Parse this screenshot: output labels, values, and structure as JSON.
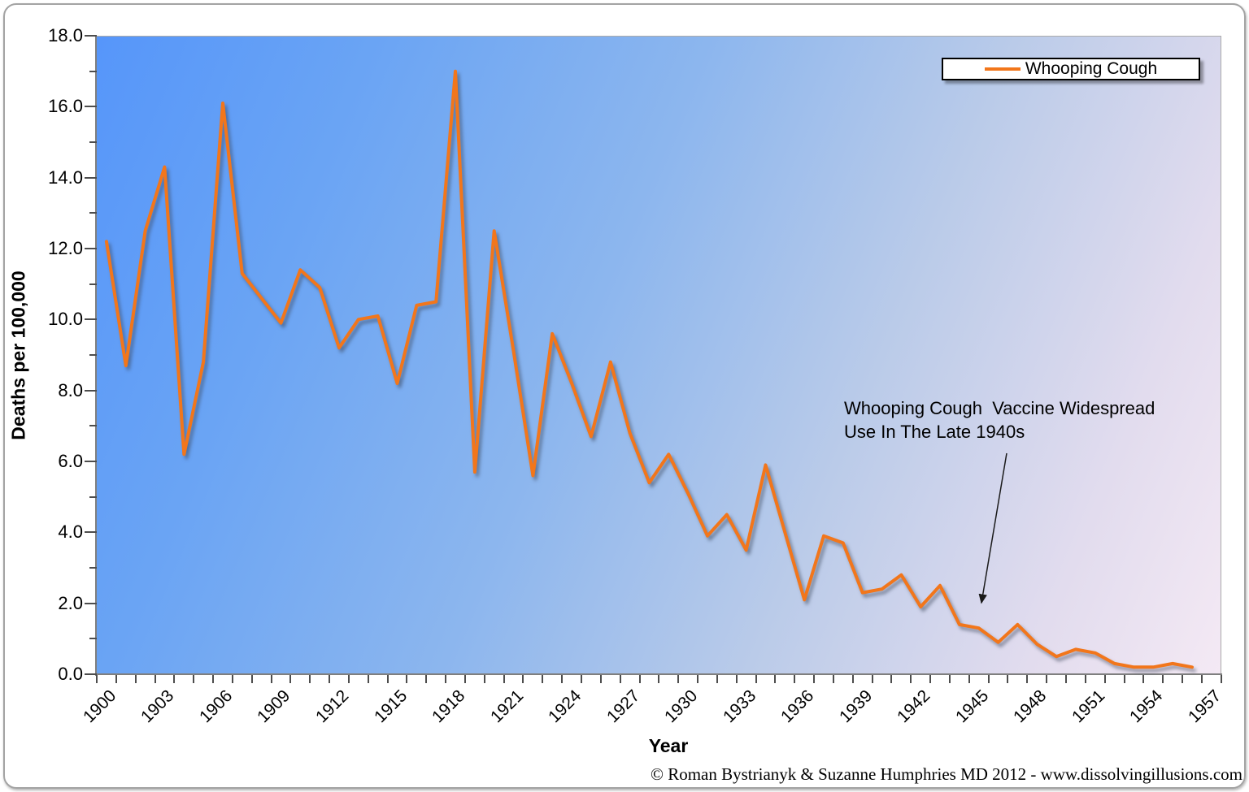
{
  "chart_data": {
    "type": "line",
    "title": "",
    "xlabel": "Year",
    "ylabel": "Deaths per 100,000",
    "ylim": [
      0.0,
      18.0
    ],
    "y_tick_step": 2.0,
    "y_tick_labels": [
      "0.0",
      "2.0",
      "4.0",
      "6.0",
      "8.0",
      "10.0",
      "12.0",
      "14.0",
      "16.0",
      "18.0"
    ],
    "x_axis_first_category": 1900,
    "x_axis_last_category": 1957,
    "x_tick_label_years": [
      1900,
      1903,
      1906,
      1909,
      1912,
      1915,
      1918,
      1921,
      1924,
      1927,
      1930,
      1933,
      1936,
      1939,
      1942,
      1945,
      1948,
      1951,
      1954,
      1957
    ],
    "grid": false,
    "legend_position": "top-right",
    "series": [
      {
        "name": "Whooping Cough",
        "color": "#F2761B",
        "x": [
          1900,
          1901,
          1902,
          1903,
          1904,
          1905,
          1906,
          1907,
          1908,
          1909,
          1910,
          1911,
          1912,
          1913,
          1914,
          1915,
          1916,
          1917,
          1918,
          1919,
          1920,
          1921,
          1922,
          1923,
          1924,
          1925,
          1926,
          1927,
          1928,
          1929,
          1930,
          1931,
          1932,
          1933,
          1934,
          1935,
          1936,
          1937,
          1938,
          1939,
          1940,
          1941,
          1942,
          1943,
          1944,
          1945,
          1946,
          1947,
          1948,
          1949,
          1950,
          1951,
          1952,
          1953,
          1954,
          1955,
          1956
        ],
        "values": [
          12.2,
          8.7,
          12.5,
          14.3,
          6.2,
          8.8,
          16.1,
          11.3,
          10.6,
          9.9,
          11.4,
          10.9,
          9.2,
          10.0,
          10.1,
          8.2,
          10.4,
          10.5,
          17.0,
          5.7,
          12.5,
          9.1,
          5.6,
          9.6,
          8.2,
          6.7,
          8.8,
          6.8,
          5.4,
          6.2,
          5.1,
          3.9,
          4.5,
          3.5,
          5.9,
          4.0,
          2.1,
          3.9,
          3.7,
          2.3,
          2.4,
          2.8,
          1.9,
          2.5,
          1.4,
          1.3,
          0.9,
          1.4,
          0.85,
          0.5,
          0.7,
          0.6,
          0.3,
          0.2,
          0.2,
          0.3,
          0.2
        ]
      }
    ],
    "annotation": {
      "line1": "Whooping Cough  Vaccine Widespread",
      "line2": "Use In The Late 1940s"
    }
  },
  "footer": {
    "copyright": "© Roman Bystrianyk & Suzanne Humphries MD 2012 - www.dissolvingillusions.com"
  },
  "colors": {
    "series_orange": "#F2761B",
    "axis_line": "#7F7F7F",
    "tick": "#4D4D4D",
    "plot_gradient_start": "#5696FA",
    "plot_gradient_end": "#F4E9F4",
    "legend_border": "#000000",
    "frame_border": "#A3A3A3"
  }
}
